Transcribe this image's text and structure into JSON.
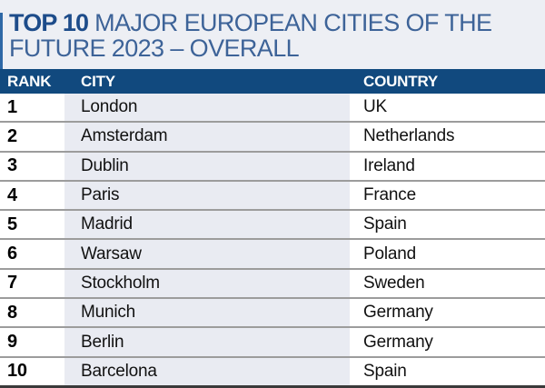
{
  "title": {
    "highlight": "TOP 10",
    "line1_rest": " MAJOR EUROPEAN CITIES OF THE",
    "line2": "FUTURE 2023 – OVERALL"
  },
  "table": {
    "columns": [
      "RANK",
      "CITY",
      "COUNTRY"
    ],
    "rows": [
      {
        "rank": "1",
        "city": "London",
        "country": "UK"
      },
      {
        "rank": "2",
        "city": "Amsterdam",
        "country": "Netherlands"
      },
      {
        "rank": "3",
        "city": "Dublin",
        "country": "Ireland"
      },
      {
        "rank": "4",
        "city": "Paris",
        "country": "France"
      },
      {
        "rank": "5",
        "city": "Madrid",
        "country": "Spain"
      },
      {
        "rank": "6",
        "city": "Warsaw",
        "country": "Poland"
      },
      {
        "rank": "7",
        "city": "Stockholm",
        "country": "Sweden"
      },
      {
        "rank": "8",
        "city": "Munich",
        "country": "Germany"
      },
      {
        "rank": "9",
        "city": "Berlin",
        "country": "Germany"
      },
      {
        "rank": "10",
        "city": "Barcelona",
        "country": "Spain"
      }
    ]
  },
  "colors": {
    "header_navy": "#11497e",
    "title_bold_blue": "#1d4c8a",
    "title_light_blue": "#3d6398",
    "title_band_bg": "#edeff4",
    "city_column_bg": "#e9ebf2",
    "row_separator": "#9c9c9c",
    "bottom_border": "#3a3a3a"
  }
}
